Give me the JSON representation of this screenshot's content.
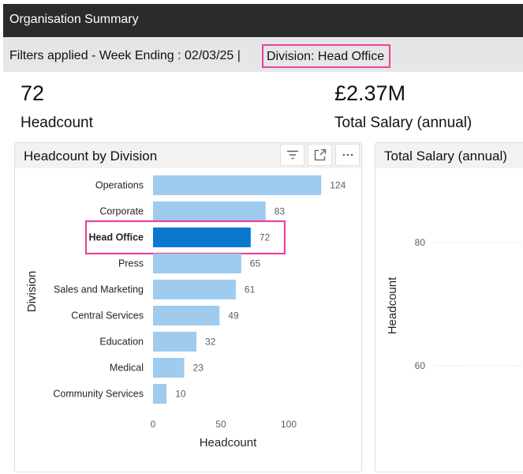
{
  "header": {
    "title": "Organisation Summary"
  },
  "filters": {
    "prefix": "Filters applied - Week Ending : 02/03/25 | ",
    "division": "Division: Head Office"
  },
  "kpis": [
    {
      "value": "72",
      "label": "Headcount"
    },
    {
      "value": "£2.37M",
      "label": "Total Salary (annual)"
    }
  ],
  "headcount_card": {
    "title": "Headcount by Division"
  },
  "salary_card": {
    "title": "Total Salary (annual)"
  },
  "icons": {
    "filter": "filter-icon",
    "focus": "focus-mode-icon",
    "more": "more-options-icon"
  },
  "colors": {
    "bar": "#9fcbee",
    "bar_selected": "#0a78cf",
    "highlight": "#e8449c",
    "titlebar": "#2b2b2b"
  },
  "chart_data": [
    {
      "type": "bar",
      "orientation": "horizontal",
      "title": "Headcount by Division",
      "xlabel": "Headcount",
      "ylabel": "Division",
      "categories": [
        "Operations",
        "Corporate",
        "Head Office",
        "Press",
        "Sales and Marketing",
        "Central Services",
        "Education",
        "Medical",
        "Community Services"
      ],
      "values": [
        124,
        83,
        72,
        65,
        61,
        49,
        32,
        23,
        10
      ],
      "selected": "Head Office",
      "xticks": [
        0,
        50,
        100
      ],
      "xlim": [
        0,
        124
      ]
    },
    {
      "type": "line",
      "title": "Total Salary (annual)",
      "ylabel": "Headcount",
      "yticks": [
        80,
        60
      ],
      "grid": true
    }
  ]
}
